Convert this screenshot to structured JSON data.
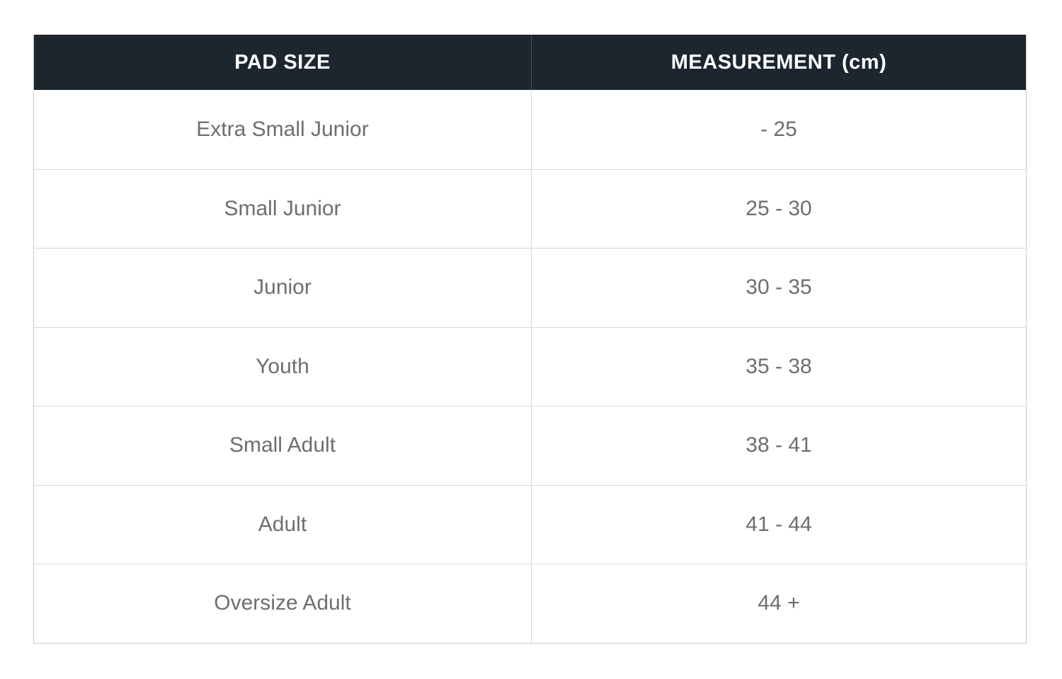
{
  "table": {
    "columns": [
      {
        "label": "PAD SIZE"
      },
      {
        "label": "MEASUREMENT (cm)"
      }
    ],
    "rows": [
      {
        "size": "Extra Small Junior",
        "measurement": "- 25"
      },
      {
        "size": "Small Junior",
        "measurement": "25 - 30"
      },
      {
        "size": "Junior",
        "measurement": "30 - 35"
      },
      {
        "size": "Youth",
        "measurement": "35 - 38"
      },
      {
        "size": "Small Adult",
        "measurement": "38 - 41"
      },
      {
        "size": "Adult",
        "measurement": "41 - 44"
      },
      {
        "size": "Oversize Adult",
        "measurement": "44 +"
      }
    ],
    "colors": {
      "header_bg": "#1d262e",
      "header_text": "#ffffff",
      "body_text": "#6e6e6e",
      "border": "#c9c9c9",
      "row_divider": "#d9d9d9"
    }
  }
}
